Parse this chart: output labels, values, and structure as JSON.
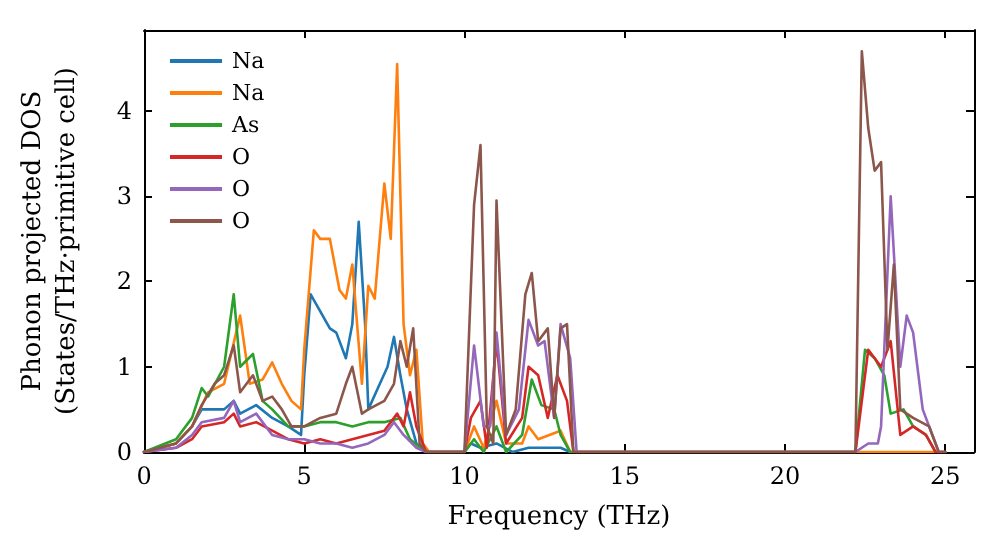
{
  "chart_data": {
    "type": "line",
    "xlabel": "Frequency (THz)",
    "ylabel": "Phonon projected DOS\n(States/THz·primitive cell)",
    "xlim": [
      0,
      25.9
    ],
    "xticks": [
      0,
      5,
      10,
      15,
      20,
      25
    ],
    "ylim": [
      0,
      4.95
    ],
    "yticks": [
      0,
      1,
      2,
      3,
      4
    ],
    "grid": false,
    "legend": "top left",
    "marker": "none",
    "line_style": "solid",
    "series": [
      {
        "name": "Na",
        "color": "#1f77b4",
        "x": [
          0,
          1,
          1.5,
          1.8,
          2.5,
          2.8,
          3,
          3.5,
          4,
          4.5,
          4.9,
          5,
          5.2,
          5.5,
          5.8,
          6,
          6.3,
          6.5,
          6.7,
          6.9,
          7,
          7.3,
          7.6,
          7.8,
          8,
          8.2,
          8.5,
          8.8,
          10,
          10.2,
          10.5,
          11,
          11.5,
          12,
          13,
          13.3
        ],
        "values": [
          0,
          0.1,
          0.3,
          0.5,
          0.5,
          0.6,
          0.45,
          0.55,
          0.4,
          0.3,
          0.2,
          0.9,
          1.85,
          1.65,
          1.45,
          1.4,
          1.1,
          1.5,
          2.7,
          1.5,
          0.5,
          0.75,
          1,
          1.35,
          0.9,
          0.5,
          0.1,
          0,
          0,
          0.1,
          0.05,
          0.1,
          0,
          0.05,
          0.05,
          0
        ]
      },
      {
        "name": "Na",
        "color": "#ff7f0e",
        "x": [
          0,
          1,
          1.5,
          2,
          2.5,
          3,
          3.3,
          3.7,
          4,
          4.3,
          4.6,
          4.9,
          5,
          5.3,
          5.5,
          5.8,
          6.1,
          6.3,
          6.5,
          6.8,
          7,
          7.2,
          7.5,
          7.7,
          7.9,
          8.1,
          8.3,
          8.5,
          8.7,
          8.9,
          10,
          10.3,
          10.6,
          11,
          11.3,
          11.8,
          12,
          12.3,
          13,
          13.3,
          25
        ],
        "values": [
          0,
          0.1,
          0.3,
          0.7,
          0.8,
          1.6,
          0.8,
          0.85,
          1.05,
          0.8,
          0.6,
          0.5,
          1.2,
          2.6,
          2.5,
          2.5,
          1.9,
          1.8,
          2.2,
          0.8,
          1.95,
          1.8,
          3.15,
          2.5,
          4.55,
          1.5,
          0.9,
          1.2,
          0.1,
          0,
          0,
          0.3,
          0.05,
          0.6,
          0.1,
          0.1,
          0.3,
          0.15,
          0.25,
          0,
          0
        ]
      },
      {
        "name": "As",
        "color": "#2ca02c",
        "x": [
          0,
          1,
          1.5,
          1.8,
          2,
          2.5,
          2.8,
          3,
          3.4,
          3.7,
          4,
          4.5,
          5,
          5.5,
          6,
          6.5,
          7,
          7.5,
          8,
          8.3,
          8.8,
          10,
          10.3,
          10.6,
          11,
          11.3,
          11.8,
          12.1,
          12.4,
          12.8,
          13,
          13.3,
          22.2,
          22.5,
          22.8,
          23.1,
          23.3,
          23.7,
          24,
          24.4,
          24.7
        ],
        "values": [
          0,
          0.15,
          0.4,
          0.75,
          0.65,
          1,
          1.85,
          1,
          1.15,
          0.6,
          0.5,
          0.3,
          0.3,
          0.35,
          0.35,
          0.3,
          0.35,
          0.35,
          0.4,
          0.15,
          0,
          0,
          0.15,
          0,
          0.3,
          0,
          0.2,
          0.85,
          0.55,
          0.5,
          0.2,
          0,
          0,
          1.2,
          1.1,
          0.9,
          0.45,
          0.5,
          0.3,
          0.2,
          0
        ]
      },
      {
        "name": "O",
        "color": "#d62728",
        "x": [
          0,
          1,
          1.5,
          1.8,
          2.5,
          2.8,
          3,
          3.5,
          4,
          4.5,
          5,
          5.5,
          6,
          6.5,
          7,
          7.5,
          7.9,
          8.1,
          8.3,
          8.5,
          8.8,
          10,
          10.2,
          10.5,
          10.7,
          11,
          11.3,
          11.8,
          12,
          12.3,
          12.6,
          12.9,
          13.2,
          13.4,
          22.2,
          22.6,
          23,
          23.3,
          23.6,
          24,
          24.4,
          24.7,
          25
        ],
        "values": [
          0,
          0.05,
          0.15,
          0.3,
          0.35,
          0.45,
          0.3,
          0.35,
          0.25,
          0.15,
          0.1,
          0.15,
          0.1,
          0.15,
          0.2,
          0.25,
          0.45,
          0.3,
          0.7,
          0.3,
          0,
          0,
          0.4,
          0.6,
          0.05,
          1.3,
          0.1,
          0.4,
          1,
          0.9,
          0.4,
          0.9,
          0.6,
          0,
          0,
          1.2,
          1,
          1.3,
          0.2,
          0.3,
          0.2,
          0,
          0
        ]
      },
      {
        "name": "O",
        "color": "#9467bd",
        "x": [
          0,
          1,
          1.5,
          1.8,
          2.5,
          2.8,
          3,
          3.5,
          4,
          4.5,
          5,
          5.5,
          6,
          6.5,
          7,
          7.5,
          7.8,
          8.1,
          8.5,
          8.8,
          10,
          10.3,
          10.6,
          10.8,
          11,
          11.3,
          11.7,
          12,
          12.3,
          12.5,
          12.8,
          13,
          13.3,
          13.5,
          22.2,
          22.6,
          22.9,
          23,
          23.3,
          23.6,
          23.8,
          24,
          24.3,
          24.6,
          24.8,
          25
        ],
        "values": [
          0,
          0.05,
          0.2,
          0.35,
          0.4,
          0.6,
          0.35,
          0.45,
          0.2,
          0.15,
          0.15,
          0.1,
          0.1,
          0.05,
          0.1,
          0.2,
          0.35,
          0.2,
          0.05,
          0,
          0,
          1.25,
          0.3,
          0.3,
          1.4,
          0.2,
          0.5,
          1.55,
          1.25,
          1.3,
          0.4,
          1.5,
          1.1,
          0,
          0,
          0.1,
          0.1,
          0.3,
          3,
          1,
          1.6,
          1.4,
          0.5,
          0.2,
          0,
          0
        ]
      },
      {
        "name": "O",
        "color": "#8c564b",
        "x": [
          0,
          1,
          1.5,
          1.8,
          2.2,
          2.5,
          2.8,
          3,
          3.4,
          3.7,
          4,
          4.3,
          4.6,
          5,
          5.5,
          6,
          6.3,
          6.5,
          6.8,
          7,
          7.5,
          7.8,
          8,
          8.2,
          8.4,
          8.6,
          8.8,
          10,
          10.3,
          10.5,
          10.7,
          10.9,
          11,
          11.3,
          11.6,
          11.9,
          12.1,
          12.3,
          12.6,
          12.8,
          13,
          13.2,
          13.4,
          22.2,
          22.4,
          22.6,
          22.8,
          23,
          23.2,
          23.4,
          23.6,
          24,
          24.5,
          24.8,
          25
        ],
        "values": [
          0,
          0.1,
          0.3,
          0.55,
          0.8,
          0.9,
          1.25,
          0.7,
          0.9,
          0.6,
          0.65,
          0.5,
          0.3,
          0.3,
          0.4,
          0.45,
          0.8,
          1,
          0.45,
          0.5,
          0.6,
          0.8,
          1.3,
          1,
          1.45,
          0.1,
          0,
          0,
          2.9,
          3.6,
          0.3,
          0.1,
          2.95,
          0.2,
          0.5,
          1.85,
          2.1,
          1.3,
          1.45,
          0.4,
          1.45,
          1.5,
          0,
          0,
          4.7,
          3.8,
          3.3,
          3.4,
          1.2,
          2.2,
          0.5,
          0.4,
          0.3,
          0,
          0
        ]
      }
    ]
  }
}
